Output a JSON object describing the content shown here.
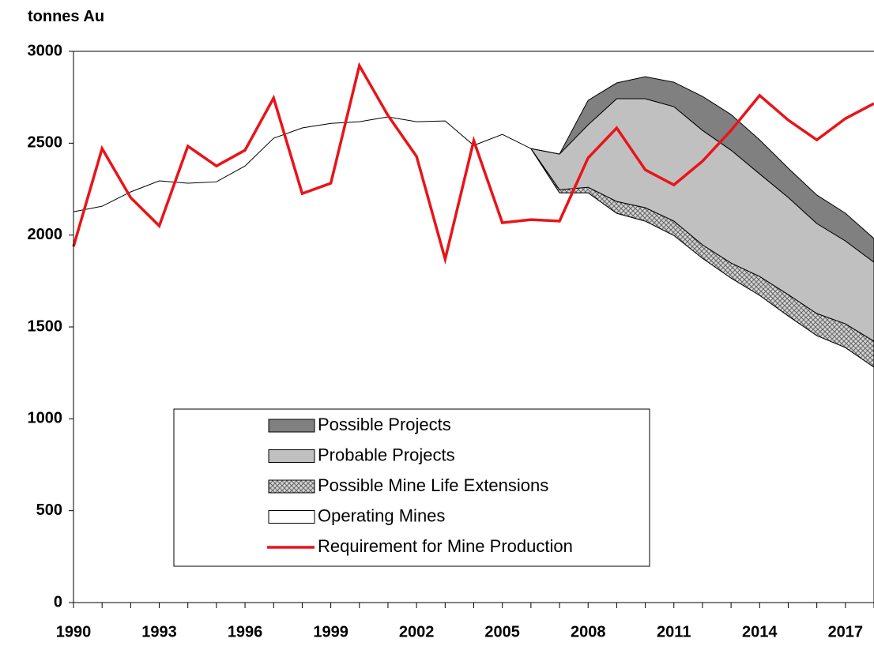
{
  "chart_data": {
    "type": "area",
    "y_label": "tonnes Au",
    "categories": [
      "1990",
      null,
      null,
      "1993",
      null,
      null,
      "1996",
      null,
      null,
      "1999",
      null,
      null,
      "2002",
      null,
      null,
      "2005",
      null,
      null,
      "2008",
      null,
      null,
      "2011",
      null,
      null,
      "2014",
      null,
      null,
      "2017",
      null
    ],
    "series": [
      {
        "name": "Operating Mines",
        "color": "#ffffff",
        "values": [
          2127,
          2157,
          2235,
          2295,
          2282,
          2290,
          2376,
          2527,
          2583,
          2608,
          2617,
          2643,
          2617,
          2621,
          2488,
          2548,
          2471,
          2230,
          2230,
          2119,
          2076,
          1998,
          1874,
          1766,
          1672,
          1560,
          1453,
          1388,
          1281
        ]
      },
      {
        "name": "Possible Mine Life Extensions",
        "color": "#b4b4b4",
        "hatch": true,
        "values": [
          null,
          null,
          null,
          null,
          null,
          null,
          null,
          null,
          null,
          null,
          null,
          null,
          null,
          null,
          null,
          null,
          0,
          17,
          30,
          64,
          73,
          78,
          73,
          82,
          103,
          116,
          120,
          129,
          141
        ]
      },
      {
        "name": "Probable Projects",
        "color": "#c0c0c0",
        "values": [
          null,
          null,
          null,
          null,
          null,
          null,
          null,
          null,
          null,
          null,
          null,
          null,
          null,
          null,
          null,
          null,
          0,
          194,
          340,
          559,
          593,
          623,
          623,
          614,
          558,
          529,
          490,
          451,
          430
        ]
      },
      {
        "name": "Possible Projects",
        "color": "#808080",
        "values": [
          null,
          null,
          null,
          null,
          null,
          null,
          null,
          null,
          null,
          null,
          null,
          null,
          null,
          null,
          null,
          null,
          0,
          0,
          133,
          86,
          120,
          133,
          185,
          194,
          185,
          159,
          155,
          151,
          129
        ]
      },
      {
        "name": "Requirement for Mine Production",
        "kind": "line",
        "color": "#e8141a",
        "values": [
          1938,
          2471,
          2204,
          2050,
          2484,
          2376,
          2462,
          2746,
          2226,
          2282,
          2922,
          2651,
          2428,
          1869,
          2514,
          2067,
          2084,
          2076,
          2420,
          2583,
          2355,
          2273,
          2402,
          2570,
          2760,
          2626,
          2518,
          2634,
          2716
        ]
      }
    ],
    "ylim": [
      0,
      3000
    ],
    "yticks": [
      0,
      500,
      1000,
      1500,
      2000,
      2500,
      3000
    ],
    "grid": false
  }
}
